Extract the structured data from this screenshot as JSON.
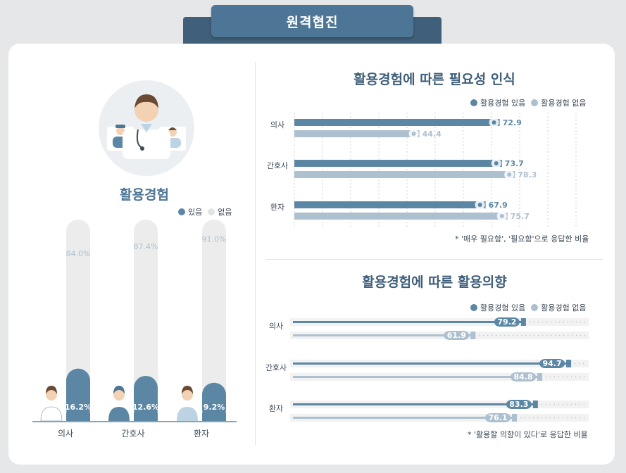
{
  "banner": {
    "title": "원격협진"
  },
  "left": {
    "title": "활용경험",
    "legend": {
      "yes": "있음",
      "no": "없음"
    }
  },
  "chart1": {
    "title": "활용경험에 따른 필요성 인식",
    "legend": {
      "yes": "활용경험 있음",
      "no": "활용경험 없음"
    },
    "footnote": "* '매우 필요함', '필요함'으로 응답한 비율"
  },
  "chart2": {
    "title": "활용경험에 따른 활용의향",
    "legend": {
      "yes": "활용경험 있음",
      "no": "활용경험 없음"
    },
    "footnote": "* '활용할 의향이 있다'로 응답한 비율"
  },
  "colors": {
    "primary": "#5b87a5",
    "secondary": "#adc0d0",
    "pill_bg": "#ececec",
    "title": "#3f5f7a"
  },
  "chart_data": [
    {
      "type": "bar",
      "categories": [
        "의사",
        "간호사",
        "환자"
      ],
      "series": [
        {
          "name": "있음",
          "values": [
            16.2,
            12.6,
            9.2
          ]
        },
        {
          "name": "없음",
          "values": [
            84.0,
            87.4,
            91.0
          ]
        }
      ],
      "labels": {
        "yes": [
          "16.2%",
          "12.6%",
          "9.2%"
        ],
        "no": [
          "84.0%",
          "87.4%",
          "91.0%"
        ]
      },
      "ylim": [
        0,
        100
      ]
    },
    {
      "type": "bar",
      "orientation": "horizontal",
      "categories": [
        "의사",
        "간호사",
        "환자"
      ],
      "series": [
        {
          "name": "활용경험 있음",
          "values": [
            72.9,
            73.7,
            67.9
          ]
        },
        {
          "name": "활용경험 없음",
          "values": [
            44.4,
            78.3,
            75.7
          ]
        }
      ],
      "xlim": [
        0,
        100
      ]
    },
    {
      "type": "bar",
      "orientation": "horizontal",
      "categories": [
        "의사",
        "간호사",
        "환자"
      ],
      "series": [
        {
          "name": "활용경험 있음",
          "values": [
            79.2,
            94.7,
            83.3
          ]
        },
        {
          "name": "활용경험 없음",
          "values": [
            61.9,
            84.8,
            76.1
          ]
        }
      ],
      "xlim": [
        0,
        100
      ]
    }
  ]
}
